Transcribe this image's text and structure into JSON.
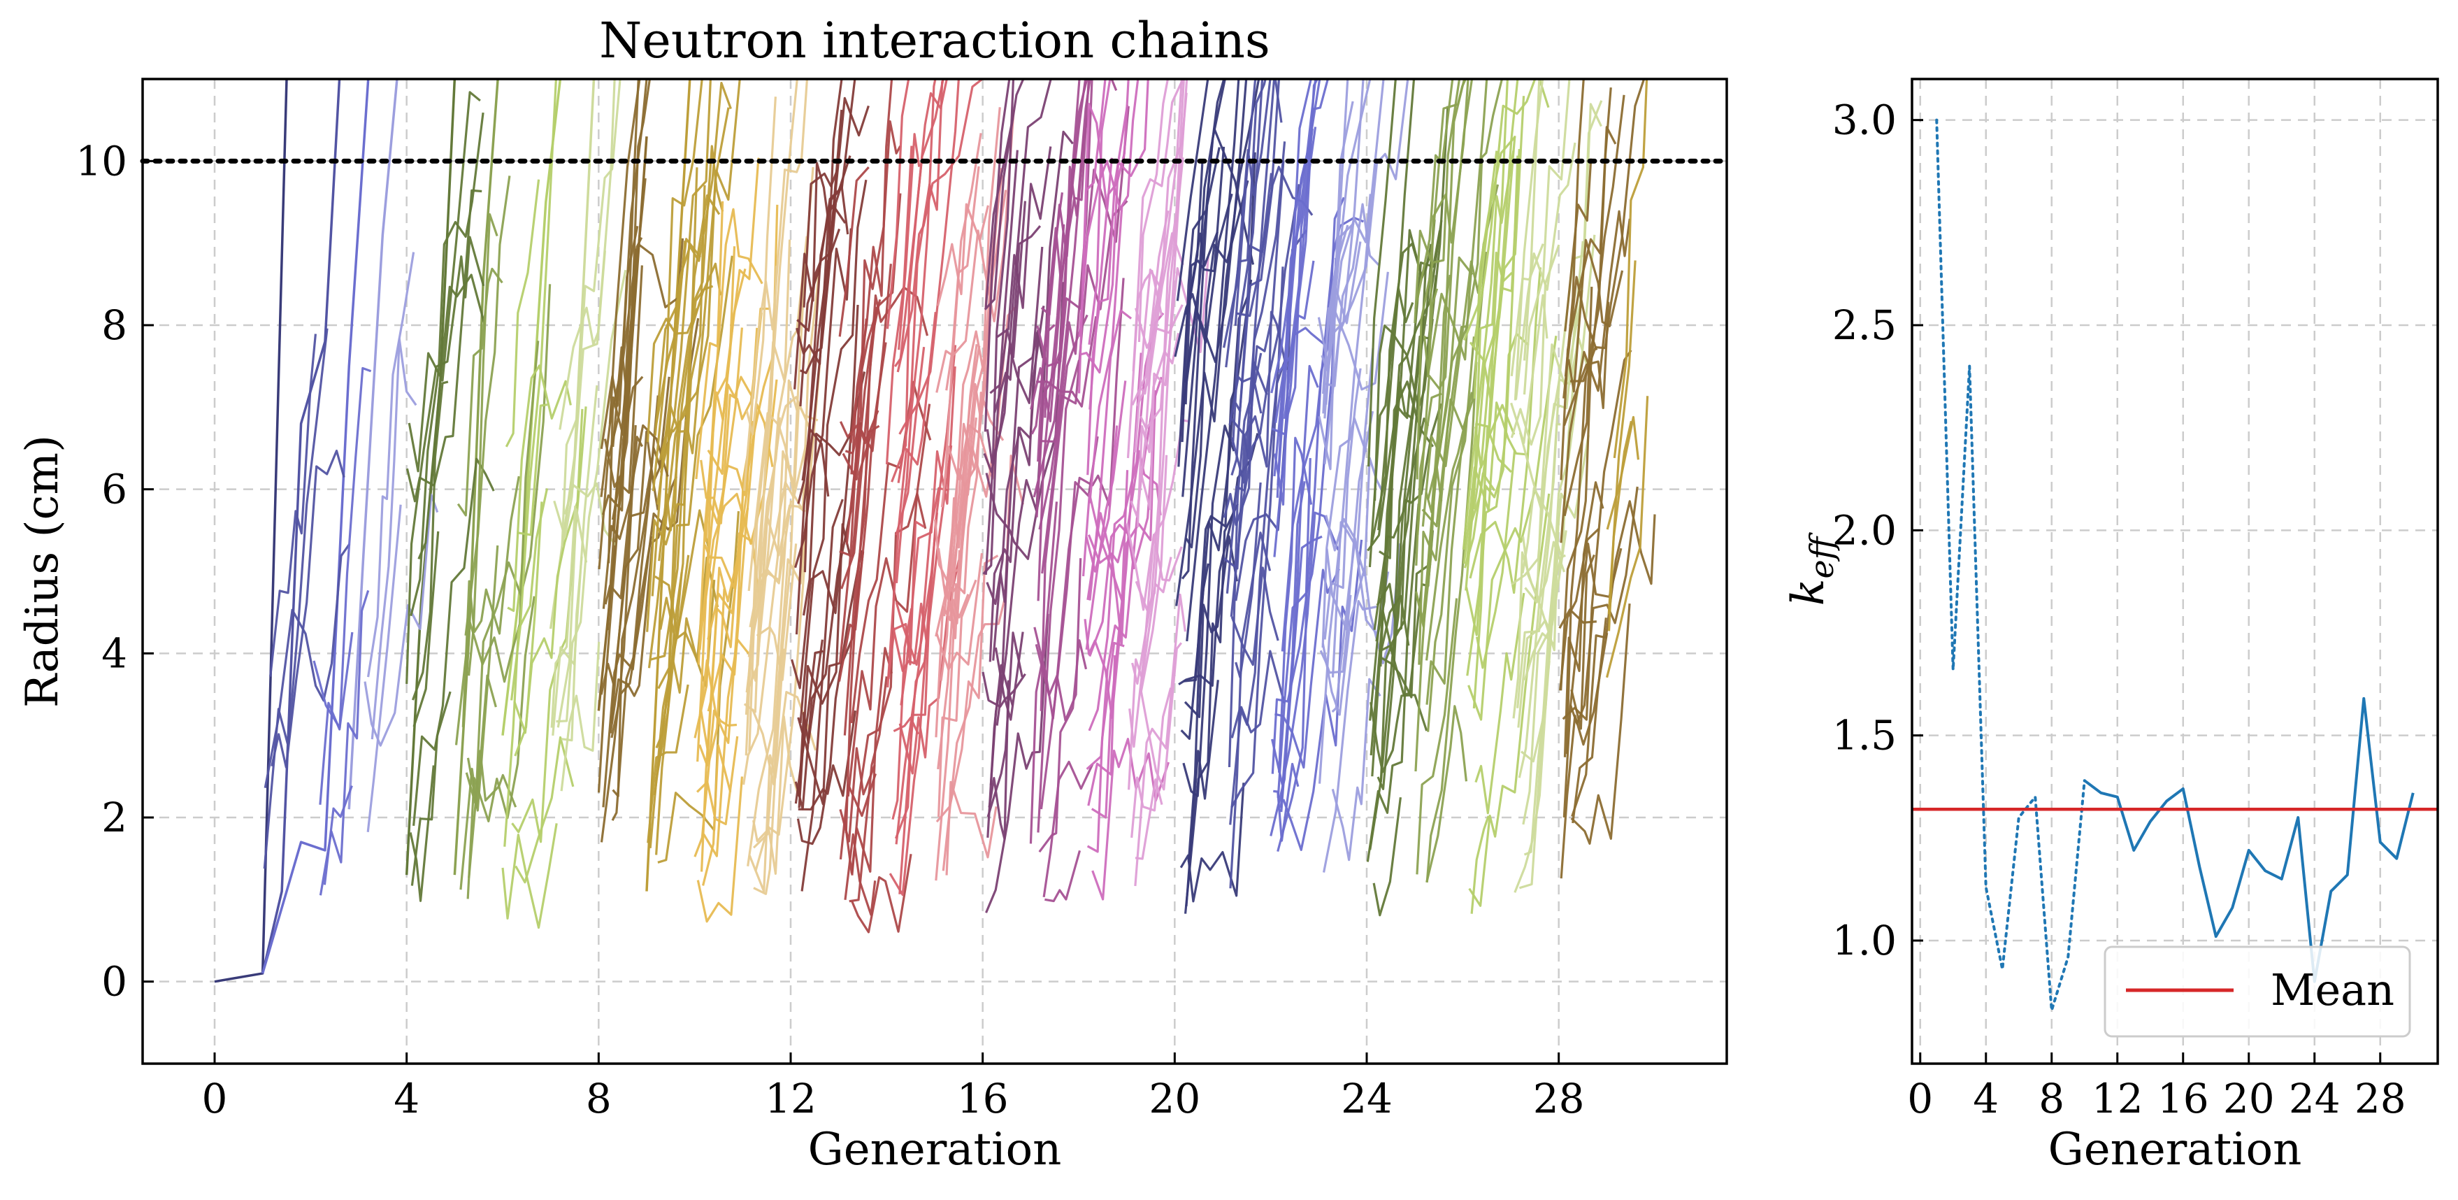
{
  "chart_data": [
    {
      "type": "line",
      "title": "Neutron interaction chains",
      "xlabel": "Generation",
      "ylabel": "Radius (cm)",
      "xlim": [
        -1.5,
        31.5
      ],
      "ylim": [
        -1,
        11
      ],
      "x_ticks": [
        0,
        4,
        8,
        12,
        16,
        20,
        24,
        28
      ],
      "y_ticks": [
        0,
        2,
        4,
        6,
        8,
        10
      ],
      "x_tick_labels": [
        "0",
        "4",
        "8",
        "12",
        "16",
        "20",
        "24",
        "28"
      ],
      "y_tick_labels": [
        "0",
        "2",
        "4",
        "6",
        "8",
        "10"
      ],
      "grid": true,
      "reference_line": {
        "y": 10,
        "style": "dotted",
        "color": "#000000"
      },
      "palette": [
        "#393b79",
        "#5254a3",
        "#6b6ecf",
        "#9c9ede",
        "#637939",
        "#8ca252",
        "#b5cf6b",
        "#cedb9c",
        "#8c6d31",
        "#bd9e39",
        "#e7ba52",
        "#e7cb94",
        "#843c39",
        "#ad494a",
        "#d6616b",
        "#e7969c",
        "#7b4173",
        "#a55194",
        "#ce6dbd",
        "#de9ed6"
      ],
      "generations": [
        {
          "gen": 0,
          "color": "#393b79",
          "chains": [
            [
              0,
              0.0
            ],
            [
              1,
              0.1
            ],
            [
              1.5,
              11.0
            ]
          ]
        },
        {
          "gen": 1,
          "color": "#5254a3",
          "chains": [
            [
              1,
              0.1
            ],
            [
              1.4,
              1.1
            ],
            [
              1.8,
              6.8
            ],
            [
              2.3,
              7.8
            ],
            [
              2.6,
              11.0
            ]
          ]
        },
        {
          "gen": 2,
          "color": "#6b6ecf",
          "chains": [
            [
              1,
              0.1
            ],
            [
              1.8,
              1.7
            ],
            [
              2.3,
              1.6
            ],
            [
              2.8,
              7.5
            ],
            [
              3.2,
              11.0
            ]
          ]
        },
        {
          "gen": 3,
          "color": "#9c9ede",
          "chains": [
            [
              2.8,
              2.1
            ],
            [
              3.1,
              5.2
            ],
            [
              3.5,
              9.1
            ],
            [
              3.8,
              11.0
            ]
          ]
        },
        {
          "gen": 4,
          "color": "#637939",
          "chains": [
            [
              4,
              1.3
            ],
            [
              4.3,
              4.6
            ],
            [
              4.7,
              7.3
            ],
            [
              5.0,
              11.0
            ]
          ]
        },
        {
          "gen": 5,
          "color": "#8ca252",
          "chains": [
            [
              5,
              1.3
            ],
            [
              5.3,
              4.2
            ],
            [
              5.6,
              8.6
            ],
            [
              5.9,
              11.0
            ]
          ]
        },
        {
          "gen": 6,
          "color": "#b5cf6b",
          "chains": [
            [
              6,
              3.0
            ],
            [
              6.4,
              5.0
            ],
            [
              6.9,
              9.5
            ],
            [
              7.2,
              11.0
            ]
          ]
        },
        {
          "gen": 7,
          "color": "#cedb9c",
          "chains": [
            [
              7,
              4.3
            ],
            [
              7.5,
              6.4
            ],
            [
              7.9,
              11.0
            ]
          ]
        },
        {
          "gen": 8,
          "color": "#8c6d31",
          "chains": [
            [
              8,
              3.3
            ],
            [
              8.5,
              6.2
            ],
            [
              9.0,
              10.3
            ]
          ]
        },
        {
          "gen": 9,
          "color": "#bd9e39",
          "chains": [
            [
              9,
              1.1
            ],
            [
              9.5,
              7.1
            ],
            [
              9.9,
              11.0
            ]
          ]
        }
      ],
      "series": [
        {
          "x": [
            0,
            1
          ],
          "y": [
            0,
            0.1
          ]
        }
      ]
    },
    {
      "type": "line",
      "title": "",
      "xlabel": "Generation",
      "ylabel": "k_eff",
      "xlim": [
        -0.5,
        31.5
      ],
      "ylim": [
        0.7,
        3.1
      ],
      "x_ticks": [
        0,
        4,
        8,
        12,
        16,
        20,
        24,
        28
      ],
      "y_ticks": [
        1.0,
        1.5,
        2.0,
        2.5,
        3.0
      ],
      "x_tick_labels": [
        "0",
        "4",
        "8",
        "12",
        "16",
        "20",
        "24",
        "28"
      ],
      "y_tick_labels": [
        "1.0",
        "1.5",
        "2.0",
        "2.5",
        "3.0"
      ],
      "grid": true,
      "legend": {
        "position": "lower-right",
        "entries": [
          "Mean"
        ]
      },
      "series": [
        {
          "style": "dotted",
          "color": "#1f77b4",
          "x": [
            1,
            2,
            3,
            4,
            5,
            6,
            7,
            8,
            9,
            10
          ],
          "y": [
            3.0,
            1.66,
            2.4,
            1.13,
            0.93,
            1.3,
            1.35,
            0.83,
            0.96,
            1.39
          ]
        },
        {
          "style": "solid",
          "color": "#1f77b4",
          "x": [
            10,
            11,
            12,
            13,
            14,
            15,
            16,
            17,
            18,
            19,
            20,
            21,
            22,
            23,
            24,
            25,
            26,
            27,
            28,
            29,
            30
          ],
          "y": [
            1.39,
            1.36,
            1.35,
            1.22,
            1.29,
            1.34,
            1.37,
            1.18,
            1.01,
            1.08,
            1.22,
            1.17,
            1.15,
            1.3,
            0.9,
            1.12,
            1.16,
            1.59,
            1.24,
            1.2,
            1.36
          ]
        },
        {
          "name": "Mean",
          "style": "solid",
          "color": "#d62728",
          "x": [
            -0.5,
            31.5
          ],
          "y": [
            1.32,
            1.32
          ]
        }
      ]
    }
  ]
}
